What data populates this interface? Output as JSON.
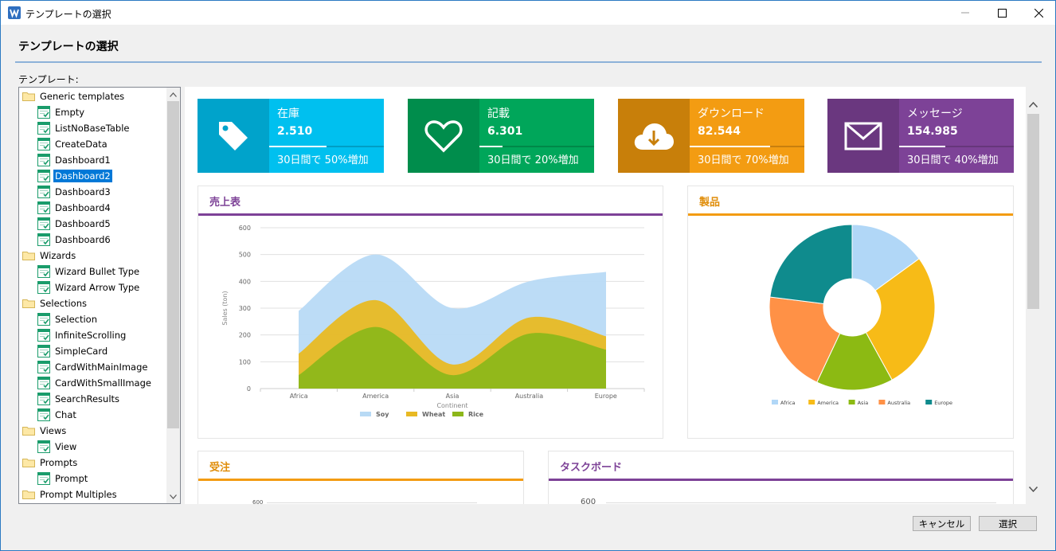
{
  "window": {
    "title": "テンプレートの選択"
  },
  "header": {
    "title": "テンプレートの選択"
  },
  "tree": {
    "label": "テンプレート:",
    "items": [
      {
        "label": "Generic templates",
        "type": "folder"
      },
      {
        "label": "Empty",
        "type": "file"
      },
      {
        "label": "ListNoBaseTable",
        "type": "file"
      },
      {
        "label": "CreateData",
        "type": "file"
      },
      {
        "label": "Dashboard1",
        "type": "file"
      },
      {
        "label": "Dashboard2",
        "type": "file",
        "selected": true
      },
      {
        "label": "Dashboard3",
        "type": "file"
      },
      {
        "label": "Dashboard4",
        "type": "file"
      },
      {
        "label": "Dashboard5",
        "type": "file"
      },
      {
        "label": "Dashboard6",
        "type": "file"
      },
      {
        "label": "Wizards",
        "type": "folder"
      },
      {
        "label": "Wizard Bullet Type",
        "type": "file"
      },
      {
        "label": "Wizard Arrow Type",
        "type": "file"
      },
      {
        "label": "Selections",
        "type": "folder"
      },
      {
        "label": "Selection",
        "type": "file"
      },
      {
        "label": "InfiniteScrolling",
        "type": "file"
      },
      {
        "label": "SimpleCard",
        "type": "file"
      },
      {
        "label": "CardWithMainImage",
        "type": "file"
      },
      {
        "label": "CardWithSmallImage",
        "type": "file"
      },
      {
        "label": "SearchResults",
        "type": "file"
      },
      {
        "label": "Chat",
        "type": "file"
      },
      {
        "label": "Views",
        "type": "folder"
      },
      {
        "label": "View",
        "type": "file"
      },
      {
        "label": "Prompts",
        "type": "folder"
      },
      {
        "label": "Prompt",
        "type": "file"
      },
      {
        "label": "Prompt Multiples",
        "type": "folder"
      }
    ]
  },
  "stats": [
    {
      "title": "在庫",
      "value": "2.510",
      "note": "30日間で 50%増加",
      "progress": 0.5,
      "icon": "tag-icon",
      "color": "#00c0ef",
      "dark": "#00a3cb"
    },
    {
      "title": "記載",
      "value": "6.301",
      "note": "30日間で 20%増加",
      "progress": 0.2,
      "icon": "heart-icon",
      "color": "#00a65a",
      "dark": "#008d4c"
    },
    {
      "title": "ダウンロード",
      "value": "82.544",
      "note": "30日間で 70%増加",
      "progress": 0.7,
      "icon": "cloud-download-icon",
      "color": "#f39c12",
      "dark": "#c87f0a"
    },
    {
      "title": "メッセージ",
      "value": "154.985",
      "note": "30日間で 40%増加",
      "progress": 0.4,
      "icon": "envelope-icon",
      "color": "#7d4297",
      "dark": "#6a377f"
    }
  ],
  "panels": {
    "sales": {
      "title": "売上表",
      "accent": "#7d4297",
      "title_color": "#7d4297"
    },
    "products": {
      "title": "製品",
      "accent": "#f39c12",
      "title_color": "#e08e0b"
    },
    "orders": {
      "title": "受注",
      "accent": "#f39c12",
      "title_color": "#e08e0b",
      "ytick": "600"
    },
    "taskboard": {
      "title": "タスクボード",
      "accent": "#7d4297",
      "title_color": "#7d4297",
      "ytick": "600"
    }
  },
  "chart_data": [
    {
      "type": "area",
      "categories": [
        "Africa",
        "America",
        "Asia",
        "Australia",
        "Europe"
      ],
      "xlabel": "Continent",
      "ylabel": "Sales (ton)",
      "ylim": [
        0,
        600
      ],
      "yticks": [
        0,
        100,
        200,
        300,
        400,
        500,
        600
      ],
      "stacked": true,
      "legend": "bottom",
      "grid": true,
      "series": [
        {
          "name": "Rice",
          "values": [
            50,
            230,
            50,
            205,
            145
          ],
          "color": "#8db71a"
        },
        {
          "name": "Wheat",
          "values": [
            130,
            330,
            90,
            265,
            195
          ],
          "color": "#e8b923"
        },
        {
          "name": "Soy",
          "values": [
            290,
            500,
            300,
            400,
            435
          ],
          "color": "#b8daf5"
        }
      ]
    },
    {
      "type": "pie",
      "donut": true,
      "legend": "bottom",
      "categories": [
        "Africa",
        "America",
        "Asia",
        "Australia",
        "Europe"
      ],
      "values": [
        15,
        27,
        15,
        20,
        23
      ],
      "colors": [
        "#b1d7f7",
        "#f7bb17",
        "#8cba13",
        "#ff9146",
        "#0f8b8d"
      ]
    }
  ],
  "buttons": {
    "cancel": "キャンセル",
    "select": "選択"
  }
}
